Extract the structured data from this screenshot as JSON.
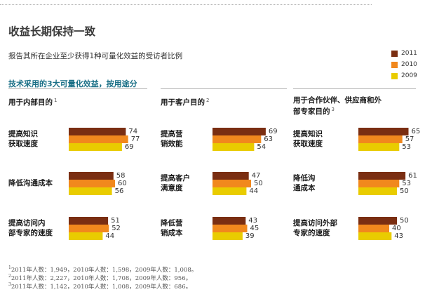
{
  "title": "收益长期保持一致",
  "subtitle": "报告其所在企业至少获得1种可量化效益的受访者比例",
  "heading": "技术采用的3大可量化效益，按用途分",
  "colors": {
    "2011": "#7a2e12",
    "2010": "#f1881d",
    "2009": "#e9cc00",
    "heading": "#1a6f86"
  },
  "legend": [
    "2011",
    "2010",
    "2009"
  ],
  "chart_data": [
    {
      "type": "bar",
      "title": "用于内部目的",
      "note": "1",
      "categories": [
        "提高知识\n获取速度",
        "降低沟通成本",
        "提高访问内\n部专家的速度"
      ],
      "series": [
        {
          "name": "2011",
          "values": [
            74,
            58,
            51
          ]
        },
        {
          "name": "2010",
          "values": [
            77,
            60,
            52
          ]
        },
        {
          "name": "2009",
          "values": [
            69,
            56,
            44
          ]
        }
      ],
      "ylabel": "%"
    },
    {
      "type": "bar",
      "title": "用于客户目的",
      "note": "2",
      "categories": [
        "提高营\n销效能",
        "提高客户\n满意度",
        "降低营\n销成本"
      ],
      "series": [
        {
          "name": "2011",
          "values": [
            69,
            47,
            43
          ]
        },
        {
          "name": "2010",
          "values": [
            63,
            50,
            45
          ]
        },
        {
          "name": "2009",
          "values": [
            54,
            44,
            39
          ]
        }
      ],
      "ylabel": "%"
    },
    {
      "type": "bar",
      "title": "用于合作伙伴、供应商和外\n部专家目的",
      "note": "3",
      "categories": [
        "提高知识\n获取速度",
        "降低沟\n通成本",
        "提高访问外部\n专家的速度"
      ],
      "series": [
        {
          "name": "2011",
          "values": [
            65,
            61,
            50
          ]
        },
        {
          "name": "2010",
          "values": [
            57,
            53,
            40
          ]
        },
        {
          "name": "2009",
          "values": [
            53,
            50,
            43
          ]
        }
      ],
      "ylabel": "%"
    }
  ],
  "footnotes": [
    {
      "mark": "1",
      "text": "2011年人数：1,949，2010年人数：1,598，2009年人数：1,008。"
    },
    {
      "mark": "2",
      "text": "2011年人数：2,227，2010年人数：1,708，2009年人数：956。"
    },
    {
      "mark": "3",
      "text": "2011年人数：1,142，2010年人数：1,008，2009年人数：686。"
    }
  ]
}
